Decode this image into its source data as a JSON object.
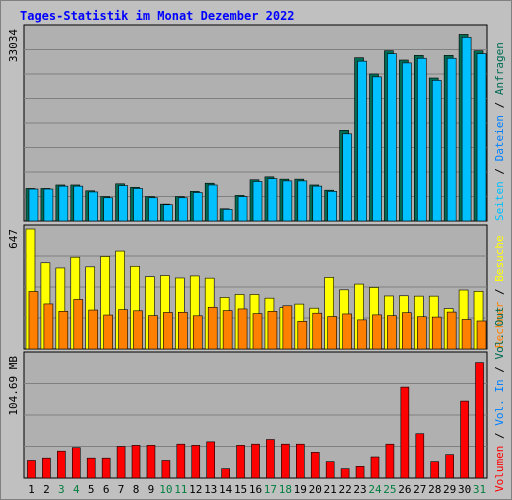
{
  "title": "Tages-Statistik im Monat Dezember 2022",
  "colors": {
    "title": "#0000ff",
    "background": "#c0c0c0",
    "plot_bg": "#b0b0b0",
    "grid": "#808080",
    "requests": "#006b54",
    "files": "#0080ff",
    "pages": "#00c0ff",
    "visits": "#ffff00",
    "sites": "#ff8000",
    "kbytes": "#ff0000",
    "weekday": "#000000",
    "weekend": "#007f3f"
  },
  "chart_data": [
    {
      "type": "bar",
      "panel": "requests",
      "max_label": "33034",
      "ylim": [
        0,
        33034
      ],
      "categories": [
        "1",
        "2",
        "3",
        "4",
        "5",
        "6",
        "7",
        "8",
        "9",
        "10",
        "11",
        "12",
        "13",
        "14",
        "15",
        "16",
        "17",
        "18",
        "19",
        "20",
        "21",
        "22",
        "23",
        "24",
        "25",
        "26",
        "27",
        "28",
        "29",
        "30",
        "31"
      ],
      "weekend_days": [
        "3",
        "4",
        "10",
        "11",
        "17",
        "18",
        "24",
        "25",
        "31"
      ],
      "legend": [
        "Anfragen",
        "Dateien",
        "Seiten"
      ],
      "series": [
        {
          "name": "Anfragen",
          "values": [
            5600,
            5600,
            6200,
            6200,
            5200,
            4200,
            6400,
            5800,
            4200,
            2900,
            4200,
            5100,
            6500,
            2100,
            4400,
            7100,
            7600,
            7200,
            7200,
            6200,
            5300,
            15600,
            28100,
            25300,
            29300,
            27700,
            28500,
            24600,
            28500,
            32100,
            29300
          ]
        },
        {
          "name": "Dateien",
          "values": [
            5500,
            5500,
            6000,
            6000,
            5000,
            4000,
            6100,
            5600,
            4000,
            2800,
            4000,
            4900,
            6200,
            2000,
            4200,
            6800,
            7300,
            6900,
            6900,
            6000,
            5100,
            15000,
            27500,
            24800,
            28800,
            27200,
            28000,
            24200,
            28000,
            31600,
            28800
          ]
        }
      ]
    },
    {
      "type": "bar",
      "panel": "visits",
      "max_label": "647",
      "ylim": [
        0,
        647
      ],
      "legend": [
        "Rechner",
        "Besuche"
      ],
      "series": [
        {
          "name": "Besuche",
          "values": [
            647,
            465,
            437,
            495,
            443,
            499,
            528,
            446,
            390,
            396,
            383,
            394,
            382,
            278,
            294,
            294,
            274,
            223,
            242,
            220,
            386,
            319,
            350,
            332,
            286,
            287,
            285,
            285,
            218,
            318,
            311
          ]
        },
        {
          "name": "Rechner",
          "values": [
            310,
            243,
            203,
            267,
            210,
            183,
            212,
            206,
            180,
            197,
            198,
            179,
            225,
            207,
            216,
            191,
            203,
            233,
            149,
            193,
            175,
            189,
            157,
            184,
            180,
            196,
            174,
            172,
            199,
            159,
            151
          ]
        }
      ]
    },
    {
      "type": "bar",
      "panel": "volume",
      "max_label": "104.69 MB",
      "ylim": [
        0,
        104.69
      ],
      "legend": [
        "Volumen",
        "Vol. In",
        "Vol. Out"
      ],
      "series": [
        {
          "name": "Volumen",
          "values": [
            15,
            17,
            23,
            26,
            17,
            17,
            27,
            28,
            28,
            15,
            29,
            28,
            31,
            8,
            28,
            29,
            33,
            29,
            29,
            22,
            14,
            8,
            10,
            18,
            29,
            78,
            38,
            14,
            20,
            66,
            99
          ]
        }
      ]
    }
  ]
}
